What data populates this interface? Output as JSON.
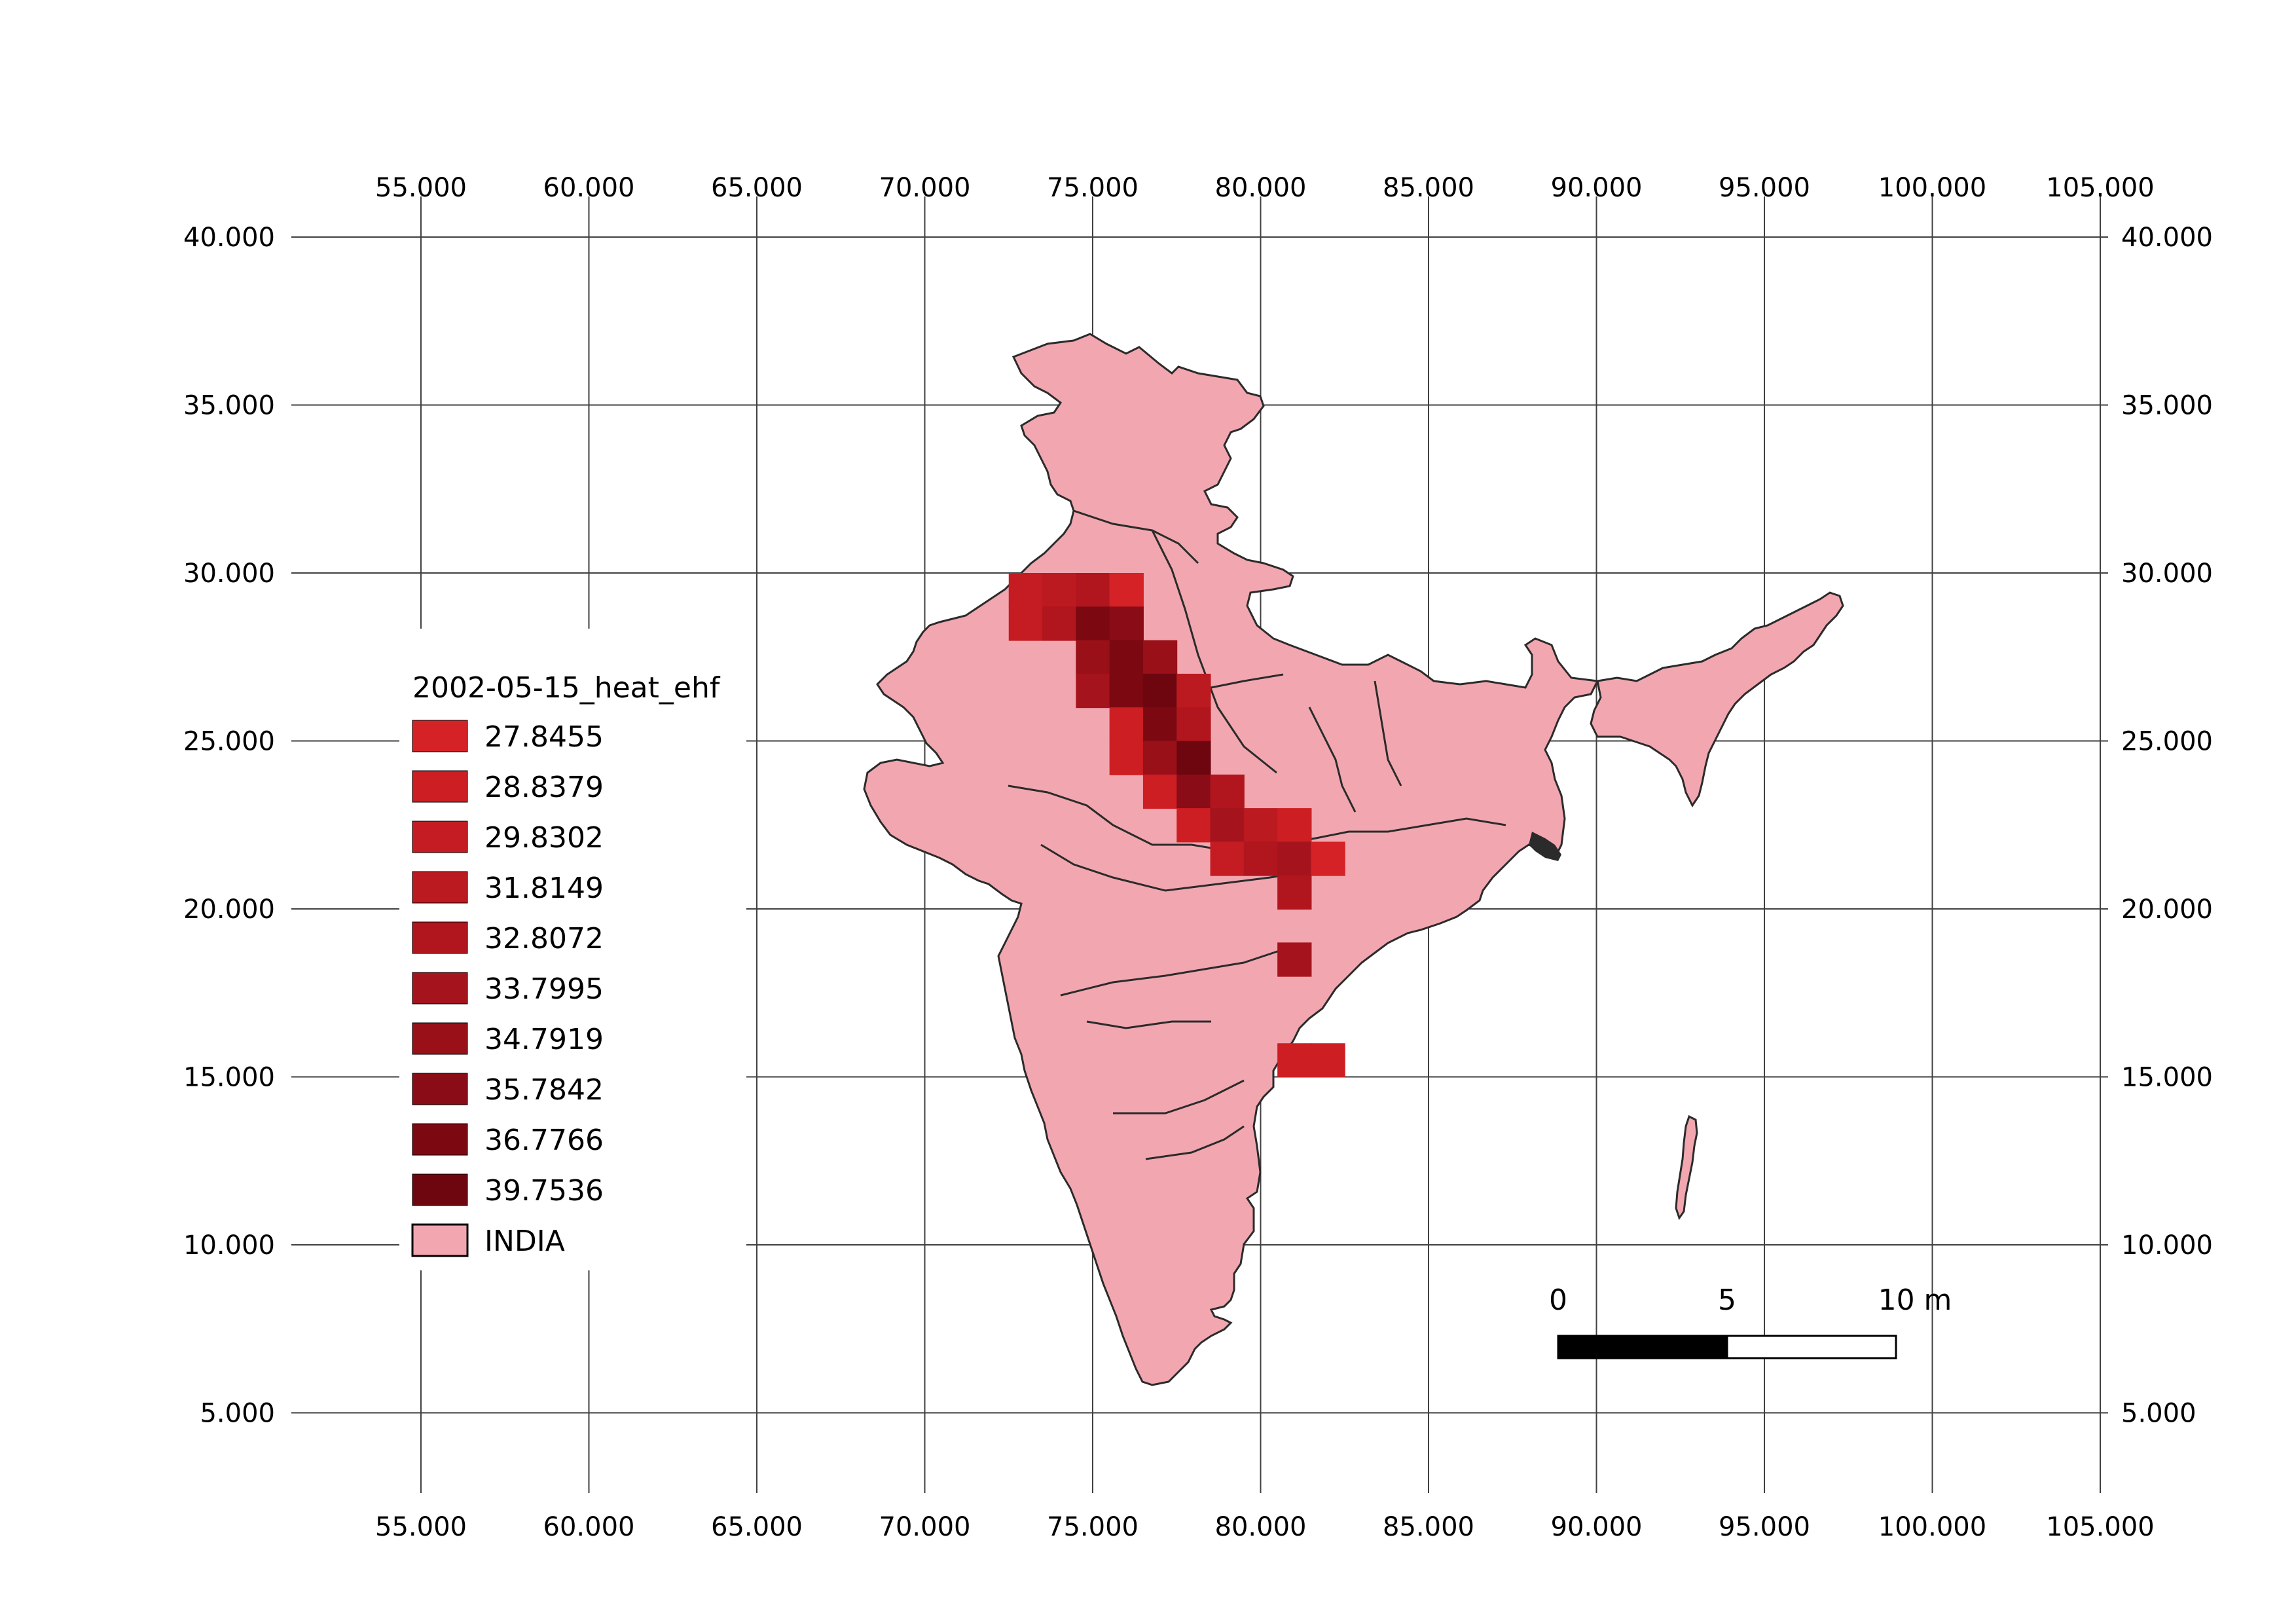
{
  "map": {
    "layer_name": "2002-05-15_heat_ehf",
    "base_layer_label": "INDIA",
    "base_fill": "#f2a7b0",
    "border_color": "#2b2b2b",
    "grid_color": "#404040",
    "x_ticks": [
      {
        "value": 55,
        "label": "55.000"
      },
      {
        "value": 60,
        "label": "60.000"
      },
      {
        "value": 65,
        "label": "65.000"
      },
      {
        "value": 70,
        "label": "70.000"
      },
      {
        "value": 75,
        "label": "75.000"
      },
      {
        "value": 80,
        "label": "80.000"
      },
      {
        "value": 85,
        "label": "85.000"
      },
      {
        "value": 90,
        "label": "90.000"
      },
      {
        "value": 95,
        "label": "95.000"
      },
      {
        "value": 100,
        "label": "100.000"
      },
      {
        "value": 105,
        "label": "105.000"
      }
    ],
    "y_ticks": [
      {
        "value": 40,
        "label": "40.000"
      },
      {
        "value": 35,
        "label": "35.000"
      },
      {
        "value": 30,
        "label": "30.000"
      },
      {
        "value": 25,
        "label": "25.000"
      },
      {
        "value": 20,
        "label": "20.000"
      },
      {
        "value": 15,
        "label": "15.000"
      },
      {
        "value": 10,
        "label": "10.000"
      },
      {
        "value": 5,
        "label": "5.000"
      }
    ],
    "legend": [
      {
        "label": "27.8455",
        "color": "#d42226"
      },
      {
        "label": "28.8379",
        "color": "#cc1e23"
      },
      {
        "label": "29.8302",
        "color": "#c41c22"
      },
      {
        "label": "31.8149",
        "color": "#bb1a20"
      },
      {
        "label": "32.8072",
        "color": "#b1161e"
      },
      {
        "label": "33.7995",
        "color": "#a5131c"
      },
      {
        "label": "34.7919",
        "color": "#991019"
      },
      {
        "label": "35.7842",
        "color": "#8a0c16"
      },
      {
        "label": "36.7766",
        "color": "#7c0912"
      },
      {
        "label": "39.7536",
        "color": "#6e0610"
      }
    ],
    "heat_cells": [
      {
        "lon": 73.0,
        "lat": 29.5,
        "color": "#c41c22"
      },
      {
        "lon": 74.0,
        "lat": 29.5,
        "color": "#bb1a20"
      },
      {
        "lon": 75.0,
        "lat": 29.5,
        "color": "#b1161e"
      },
      {
        "lon": 76.0,
        "lat": 29.5,
        "color": "#d42226"
      },
      {
        "lon": 73.0,
        "lat": 28.5,
        "color": "#c41c22"
      },
      {
        "lon": 74.0,
        "lat": 28.5,
        "color": "#b1161e"
      },
      {
        "lon": 75.0,
        "lat": 28.5,
        "color": "#7c0912"
      },
      {
        "lon": 76.0,
        "lat": 28.5,
        "color": "#8a0c16"
      },
      {
        "lon": 75.0,
        "lat": 27.5,
        "color": "#991019"
      },
      {
        "lon": 76.0,
        "lat": 27.5,
        "color": "#7c0912"
      },
      {
        "lon": 77.0,
        "lat": 27.5,
        "color": "#991019"
      },
      {
        "lon": 75.0,
        "lat": 26.5,
        "color": "#a5131c"
      },
      {
        "lon": 76.0,
        "lat": 26.5,
        "color": "#7c0912"
      },
      {
        "lon": 77.0,
        "lat": 26.5,
        "color": "#6e0610"
      },
      {
        "lon": 78.0,
        "lat": 26.5,
        "color": "#bb1a20"
      },
      {
        "lon": 76.0,
        "lat": 25.5,
        "color": "#cc1e23"
      },
      {
        "lon": 77.0,
        "lat": 25.5,
        "color": "#7c0912"
      },
      {
        "lon": 78.0,
        "lat": 25.5,
        "color": "#b1161e"
      },
      {
        "lon": 76.0,
        "lat": 24.5,
        "color": "#cc1e23"
      },
      {
        "lon": 77.0,
        "lat": 24.5,
        "color": "#991019"
      },
      {
        "lon": 78.0,
        "lat": 24.5,
        "color": "#6e0610"
      },
      {
        "lon": 77.0,
        "lat": 23.5,
        "color": "#cc1e23"
      },
      {
        "lon": 78.0,
        "lat": 23.5,
        "color": "#8a0c16"
      },
      {
        "lon": 79.0,
        "lat": 23.5,
        "color": "#b1161e"
      },
      {
        "lon": 78.0,
        "lat": 22.5,
        "color": "#cc1e23"
      },
      {
        "lon": 79.0,
        "lat": 22.5,
        "color": "#a5131c"
      },
      {
        "lon": 80.0,
        "lat": 22.5,
        "color": "#bb1a20"
      },
      {
        "lon": 81.0,
        "lat": 22.5,
        "color": "#cc1e23"
      },
      {
        "lon": 79.0,
        "lat": 21.5,
        "color": "#c41c22"
      },
      {
        "lon": 80.0,
        "lat": 21.5,
        "color": "#b1161e"
      },
      {
        "lon": 81.0,
        "lat": 21.5,
        "color": "#a5131c"
      },
      {
        "lon": 82.0,
        "lat": 21.5,
        "color": "#d42226"
      },
      {
        "lon": 81.0,
        "lat": 20.5,
        "color": "#b1161e"
      },
      {
        "lon": 81.0,
        "lat": 18.5,
        "color": "#a5131c"
      },
      {
        "lon": 81.0,
        "lat": 15.5,
        "color": "#cc1e23"
      },
      {
        "lon": 82.0,
        "lat": 15.5,
        "color": "#cc1e23"
      }
    ],
    "scale_bar": {
      "labels": [
        "0",
        "5",
        "10 m"
      ]
    }
  }
}
